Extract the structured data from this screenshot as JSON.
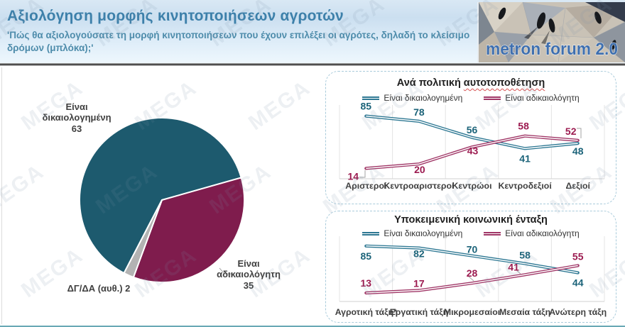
{
  "header": {
    "title": "Αξιολόγηση μορφής κινητοποιήσεων αγροτών",
    "subtitle": "'Πώς θα αξιολογούσατε τη μορφή κινητοποιήσεων που έχουν επιλέξει οι αγρότες, δηλαδή το κλείσιμο δρόμων (μπλόκα);'",
    "logo_text": "metron forum 2.0"
  },
  "watermark": {
    "text": "MEGA"
  },
  "colors": {
    "header_title_blue": "#3d80aa",
    "header_subtitle_blue": "#4e8cab",
    "pie_teal": "#1d5a6e",
    "pie_maroon": "#7f1c4d",
    "pie_grey": "#b3b3b3",
    "line_teal": "#2e7893",
    "line_maroon": "#a03767",
    "label_teal": "#1b6379",
    "label_maroon": "#9c1b50",
    "axis_text": "#3f3f3f",
    "gridline": "#e4e4e4",
    "panel_border": "#a9cbdb"
  },
  "chart_data": [
    {
      "type": "pie",
      "start_angle_deg": 207.4,
      "slices": [
        {
          "label": "Είναι δικαιολογημένη",
          "value": 63,
          "color": "#1d5a6e"
        },
        {
          "label": "Είναι αδικαιολόγητη",
          "value": 35,
          "color": "#7f1c4d"
        },
        {
          "label": "ΔΓ/ΔΑ (αυθ.)",
          "value": 2,
          "color": "#b3b3b3"
        }
      ]
    },
    {
      "type": "line",
      "title_plain": "Ανά πολιτική",
      "title_word": "αυτοτοποθέτηση",
      "categories": [
        "Αριστεροί",
        "Κεντροαριστεροί",
        "Κεντρώοι",
        "Κεντροδεξιοί",
        "Δεξιοί"
      ],
      "ylim": [
        0,
        100
      ],
      "legend_position": "top",
      "grid": "vertical",
      "series": [
        {
          "name": "Είναι δικαιολογημένη",
          "color": "#2e7893",
          "label_color": "#1b6379",
          "values": [
            85,
            78,
            56,
            41,
            48
          ],
          "label_offsets": [
            [
              0,
              -9
            ],
            [
              0,
              -8
            ],
            [
              0,
              -6
            ],
            [
              0,
              19
            ],
            [
              0,
              16
            ]
          ]
        },
        {
          "name": "Είναι αδικαιολόγητη",
          "color": "#a03767",
          "label_color": "#9c1b50",
          "values": [
            14,
            20,
            43,
            58,
            52
          ],
          "label_offsets": [
            [
              -18,
              16
            ],
            [
              1,
              13
            ],
            [
              1,
              10
            ],
            [
              -2,
              -9
            ],
            [
              -10,
              -8
            ]
          ]
        }
      ],
      "leaders": [
        [
          [
            47,
            149
          ],
          [
            55,
            149
          ],
          [
            55,
            139
          ]
        ],
        [
          [
            353,
            80
          ],
          [
            359,
            80
          ],
          [
            359,
            94
          ]
        ]
      ]
    },
    {
      "type": "line",
      "title": "Υποκειμενική κοινωνική ένταξη",
      "categories": [
        "Αγροτική τάξη*",
        "Εργατική τάξη",
        "Μικρομεσαίοι",
        "Μεσαία τάξη",
        "Ανώτερη τάξη"
      ],
      "ylim": [
        0,
        100
      ],
      "legend_position": "top",
      "grid": "vertical",
      "series": [
        {
          "name": "Είναι δικαιολογημένη",
          "color": "#2e7893",
          "label_color": "#1b6379",
          "values": [
            85,
            82,
            70,
            58,
            44
          ],
          "label_offsets": [
            [
              0,
              19
            ],
            [
              0,
              13
            ],
            [
              0,
              -4
            ],
            [
              0,
              -7
            ],
            [
              0,
              19
            ]
          ]
        },
        {
          "name": "Είναι αδικαιολόγητη",
          "color": "#a03767",
          "label_color": "#9c1b50",
          "values": [
            13,
            17,
            28,
            41,
            55
          ],
          "label_offsets": [
            [
              0,
              -9
            ],
            [
              0,
              -5
            ],
            [
              0,
              -9
            ],
            [
              -16,
              -6
            ],
            [
              0,
              -8
            ]
          ]
        }
      ],
      "leaders": [
        [
          [
            201,
            92
          ],
          [
            208,
            98
          ]
        ],
        [
          [
            267,
            82
          ],
          [
            274,
            88
          ]
        ]
      ]
    }
  ]
}
